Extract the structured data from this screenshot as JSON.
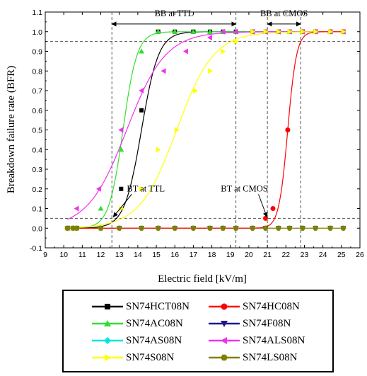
{
  "chart_data": {
    "type": "scatter",
    "xlabel": "Electric field [kV/m]",
    "ylabel": "Breakdown failure rate (BFR)",
    "xlim": [
      9,
      26
    ],
    "ylim": [
      -0.1,
      1.1
    ],
    "x_ticks": [
      "9",
      "10",
      "11",
      "12",
      "13",
      "14",
      "15",
      "16",
      "17",
      "18",
      "19",
      "20",
      "21",
      "22",
      "23",
      "24",
      "25",
      "26"
    ],
    "y_ticks": [
      "-0.1",
      "0.0",
      "0.1",
      "0.2",
      "0.3",
      "0.4",
      "0.5",
      "0.6",
      "0.7",
      "0.8",
      "0.9",
      "1.0",
      "1.1"
    ],
    "grid": false,
    "legend_position": "bottom",
    "series": [
      {
        "name": "SN74HCT08N",
        "color": "#000000",
        "marker": "square",
        "points": [
          [
            10.2,
            0
          ],
          [
            10.5,
            0
          ],
          [
            10.7,
            0
          ],
          [
            12,
            0
          ],
          [
            13.1,
            0.2
          ],
          [
            14.2,
            0.6
          ],
          [
            15.1,
            1.0
          ],
          [
            16,
            1.0
          ],
          [
            17,
            1.0
          ],
          [
            17.9,
            1.0
          ],
          [
            18.6,
            1.0
          ],
          [
            19.3,
            1.0
          ],
          [
            20.2,
            1.0
          ],
          [
            20.9,
            1.0
          ],
          [
            21.6,
            1.0
          ],
          [
            22.2,
            1.0
          ],
          [
            22.9,
            1.0
          ],
          [
            23.6,
            1.0
          ],
          [
            24.4,
            1.0
          ],
          [
            25.1,
            1.0
          ]
        ]
      },
      {
        "name": "SN74HC08N",
        "color": "#ff0000",
        "marker": "circle",
        "points": [
          [
            10.2,
            0
          ],
          [
            10.5,
            0
          ],
          [
            10.7,
            0
          ],
          [
            12,
            0
          ],
          [
            13,
            0
          ],
          [
            14.2,
            0
          ],
          [
            15.1,
            0
          ],
          [
            16,
            0
          ],
          [
            17,
            0
          ],
          [
            17.9,
            0
          ],
          [
            18.6,
            0
          ],
          [
            19.3,
            0
          ],
          [
            20.2,
            0
          ],
          [
            20.9,
            0.05
          ],
          [
            21.3,
            0.1
          ],
          [
            22.1,
            0.5
          ],
          [
            22.9,
            1.0
          ],
          [
            23.6,
            1.0
          ],
          [
            24.4,
            1.0
          ],
          [
            25.1,
            1.0
          ]
        ]
      },
      {
        "name": "SN74AC08N",
        "color": "#33dd33",
        "marker": "triangle-up",
        "points": [
          [
            10.2,
            0
          ],
          [
            10.5,
            0
          ],
          [
            10.7,
            0
          ],
          [
            12,
            0.1
          ],
          [
            13.1,
            0.4
          ],
          [
            14.2,
            0.9
          ],
          [
            15.1,
            1.0
          ],
          [
            16,
            1.0
          ],
          [
            17,
            1.0
          ],
          [
            17.9,
            1.0
          ],
          [
            18.6,
            1.0
          ],
          [
            19.3,
            1.0
          ],
          [
            20.2,
            1.0
          ],
          [
            20.9,
            1.0
          ],
          [
            21.6,
            1.0
          ],
          [
            22.2,
            1.0
          ],
          [
            22.9,
            1.0
          ],
          [
            23.6,
            1.0
          ],
          [
            24.4,
            1.0
          ],
          [
            25.1,
            1.0
          ]
        ]
      },
      {
        "name": "SN74F08N",
        "color": "#1a1a8c",
        "marker": "triangle-down",
        "points": [
          [
            10.2,
            0
          ],
          [
            10.5,
            0
          ],
          [
            10.7,
            0
          ],
          [
            12,
            0
          ],
          [
            13,
            0
          ],
          [
            14.2,
            0
          ],
          [
            15.1,
            0
          ],
          [
            16,
            0
          ],
          [
            17,
            0
          ],
          [
            17.9,
            0
          ],
          [
            18.6,
            0
          ],
          [
            19.3,
            0
          ],
          [
            20.2,
            0
          ],
          [
            20.9,
            0
          ],
          [
            21.6,
            0
          ],
          [
            22.2,
            0
          ],
          [
            22.9,
            0
          ],
          [
            23.6,
            0
          ],
          [
            24.4,
            0
          ],
          [
            25.1,
            0
          ]
        ]
      },
      {
        "name": "SN74AS08N",
        "color": "#00e5e5",
        "marker": "diamond",
        "points": [
          [
            10.2,
            0
          ],
          [
            10.5,
            0
          ],
          [
            10.7,
            0
          ],
          [
            12,
            0
          ],
          [
            13,
            0
          ],
          [
            14.2,
            0
          ],
          [
            15.1,
            0
          ],
          [
            16,
            0
          ],
          [
            17,
            0
          ],
          [
            17.9,
            0
          ],
          [
            18.6,
            0
          ],
          [
            19.3,
            0
          ],
          [
            20.2,
            0
          ],
          [
            20.9,
            0
          ],
          [
            21.6,
            0
          ],
          [
            22.2,
            0
          ],
          [
            22.9,
            0
          ],
          [
            23.6,
            0
          ],
          [
            24.4,
            0
          ],
          [
            25.1,
            0
          ]
        ]
      },
      {
        "name": "SN74ALS08N",
        "color": "#ee33ee",
        "marker": "triangle-left",
        "points": [
          [
            10.2,
            0
          ],
          [
            10.7,
            0.1
          ],
          [
            11.9,
            0.2
          ],
          [
            13.1,
            0.5
          ],
          [
            14.2,
            0.7
          ],
          [
            15.4,
            0.8
          ],
          [
            16.6,
            0.9
          ],
          [
            17.9,
            0.97
          ],
          [
            18.6,
            1.0
          ],
          [
            19.3,
            1.0
          ],
          [
            20.2,
            1.0
          ],
          [
            20.9,
            1.0
          ],
          [
            21.6,
            1.0
          ],
          [
            22.2,
            1.0
          ],
          [
            22.9,
            1.0
          ],
          [
            23.6,
            1.0
          ],
          [
            24.4,
            1.0
          ],
          [
            25.1,
            1.0
          ]
        ]
      },
      {
        "name": "SN74S08N",
        "color": "#ffff00",
        "marker": "triangle-right",
        "points": [
          [
            10.2,
            0
          ],
          [
            10.5,
            0
          ],
          [
            10.7,
            0
          ],
          [
            12,
            0
          ],
          [
            13.1,
            0.1
          ],
          [
            14.2,
            0.2
          ],
          [
            15.1,
            0.4
          ],
          [
            16.1,
            0.5
          ],
          [
            17.1,
            0.7
          ],
          [
            17.9,
            0.8
          ],
          [
            18.6,
            0.9
          ],
          [
            19.3,
            0.95
          ],
          [
            20.2,
            1.0
          ],
          [
            20.9,
            1.0
          ],
          [
            21.6,
            1.0
          ],
          [
            22.2,
            1.0
          ],
          [
            22.9,
            1.0
          ],
          [
            23.6,
            1.0
          ],
          [
            24.4,
            1.0
          ],
          [
            25.1,
            1.0
          ]
        ]
      },
      {
        "name": "SN74LS08N",
        "color": "#808000",
        "marker": "hexagon",
        "points": [
          [
            10.2,
            0
          ],
          [
            10.5,
            0
          ],
          [
            10.7,
            0
          ],
          [
            12,
            0
          ],
          [
            13,
            0
          ],
          [
            14.2,
            0
          ],
          [
            15.1,
            0
          ],
          [
            16,
            0
          ],
          [
            17,
            0
          ],
          [
            17.9,
            0
          ],
          [
            18.6,
            0
          ],
          [
            19.3,
            0
          ],
          [
            20.2,
            0
          ],
          [
            20.9,
            0
          ],
          [
            21.6,
            0
          ],
          [
            22.2,
            0
          ],
          [
            22.9,
            0
          ],
          [
            23.6,
            0
          ],
          [
            24.4,
            0
          ],
          [
            25.1,
            0
          ]
        ]
      }
    ],
    "fit_curves": [
      {
        "color": "#000000",
        "center": 14.2,
        "width": 0.46
      },
      {
        "color": "#33dd33",
        "center": 13.2,
        "width": 0.38
      },
      {
        "color": "#ee33ee",
        "center": 13.4,
        "width": 1.05
      },
      {
        "color": "#ffff00",
        "center": 16.1,
        "width": 1.0
      },
      {
        "color": "#ff0000",
        "center": 22.1,
        "width": 0.24
      }
    ],
    "reference_lines": {
      "horizontal": [
        0.05,
        0.95
      ],
      "vertical": [
        12.6,
        19.3,
        21.0,
        22.8
      ]
    },
    "annotations": [
      {
        "text": "BB at TTL",
        "type": "range",
        "x": [
          12.6,
          19.3
        ],
        "y": 1.05
      },
      {
        "text": "BB at CMOS",
        "type": "range",
        "x": [
          21.0,
          22.8
        ],
        "y": 1.05
      },
      {
        "text": "BT at TTL",
        "type": "arrow",
        "x": 12.6,
        "y": 0.05
      },
      {
        "text": "BT at CMOS",
        "type": "arrow",
        "x": 20.9,
        "y": 0.05
      }
    ]
  },
  "legend": [
    {
      "name": "SN74HCT08N",
      "color": "#000000",
      "marker": "square"
    },
    {
      "name": "SN74HC08N",
      "color": "#ff0000",
      "marker": "circle"
    },
    {
      "name": "SN74AC08N",
      "color": "#33dd33",
      "marker": "triangle-up"
    },
    {
      "name": "SN74F08N",
      "color": "#1a1a8c",
      "marker": "triangle-down"
    },
    {
      "name": "SN74AS08N",
      "color": "#00e5e5",
      "marker": "diamond"
    },
    {
      "name": "SN74ALS08N",
      "color": "#ee33ee",
      "marker": "triangle-left"
    },
    {
      "name": "SN74S08N",
      "color": "#ffff00",
      "marker": "triangle-right"
    },
    {
      "name": "SN74LS08N",
      "color": "#808000",
      "marker": "hexagon"
    }
  ]
}
